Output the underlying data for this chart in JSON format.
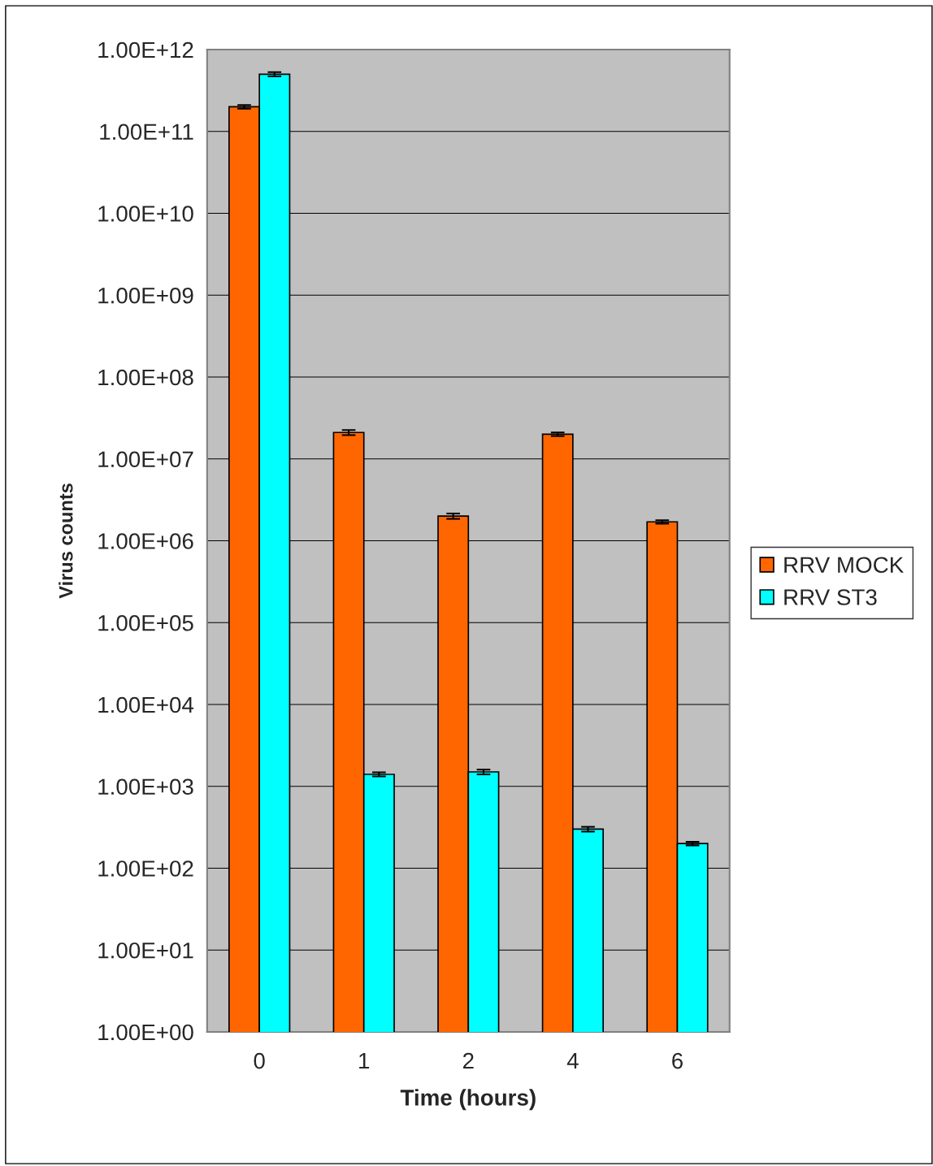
{
  "chart_data": {
    "type": "bar",
    "xlabel": "Time (hours)",
    "ylabel": "Virus counts",
    "categories": [
      "0",
      "1",
      "2",
      "4",
      "6"
    ],
    "series": [
      {
        "name": "RRV MOCK",
        "color": "#ff6600",
        "values": [
          200000000000.0,
          21000000.0,
          2000000.0,
          20000000.0,
          1700000.0
        ],
        "errors": [
          10000000000.0,
          1500000.0,
          150000.0,
          1000000.0,
          80000.0
        ]
      },
      {
        "name": "RRV ST3",
        "color": "#00ffff",
        "values": [
          500000000000.0,
          1400.0,
          1500.0,
          300.0,
          200.0
        ],
        "errors": [
          30000000000.0,
          80,
          100,
          20,
          10
        ]
      }
    ],
    "log": "y",
    "ylim": [
      1,
      1000000000000.0
    ],
    "yticks": [
      {
        "value": 1,
        "label": "1.00E+00"
      },
      {
        "value": 10,
        "label": "1.00E+01"
      },
      {
        "value": 100,
        "label": "1.00E+02"
      },
      {
        "value": 1000,
        "label": "1.00E+03"
      },
      {
        "value": 10000.0,
        "label": "1.00E+04"
      },
      {
        "value": 100000.0,
        "label": "1.00E+05"
      },
      {
        "value": 1000000.0,
        "label": "1.00E+06"
      },
      {
        "value": 10000000.0,
        "label": "1.00E+07"
      },
      {
        "value": 100000000.0,
        "label": "1.00E+08"
      },
      {
        "value": 1000000000.0,
        "label": "1.00E+09"
      },
      {
        "value": 10000000000.0,
        "label": "1.00E+10"
      },
      {
        "value": 100000000000.0,
        "label": "1.00E+11"
      },
      {
        "value": 1000000000000.0,
        "label": "1.00E+12"
      }
    ],
    "grid": "y",
    "legend": "right"
  }
}
